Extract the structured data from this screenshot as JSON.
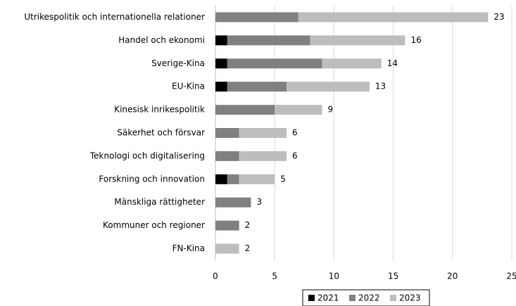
{
  "chart_data": {
    "type": "stacked_barh",
    "categories": [
      "Utrikespolitik och internationella relationer",
      "Handel och ekonomi",
      "Sverige-Kina",
      "EU-Kina",
      "Kinesisk inrikespolitik",
      "Säkerhet och försvar",
      "Teknologi och digitalisering",
      "Forskning och innovation",
      "Mänskliga rättigheter",
      "Kommuner och regioner",
      "FN-Kina"
    ],
    "series": [
      {
        "name": "2021",
        "color": "#000000",
        "values": [
          0,
          1,
          1,
          1,
          0,
          0,
          0,
          1,
          0,
          0,
          0
        ]
      },
      {
        "name": "2022",
        "color": "#808080",
        "values": [
          7,
          7,
          8,
          5,
          5,
          2,
          2,
          1,
          3,
          2,
          0
        ]
      },
      {
        "name": "2023",
        "color": "#bdbdbd",
        "values": [
          16,
          8,
          5,
          7,
          4,
          4,
          4,
          3,
          0,
          0,
          2
        ]
      }
    ],
    "totals": [
      23,
      16,
      14,
      13,
      9,
      6,
      6,
      5,
      3,
      2,
      2
    ],
    "xlim": [
      0,
      25
    ],
    "xticks": [
      0,
      5,
      10,
      15,
      20,
      25
    ],
    "grid": true,
    "legend": "bottom"
  }
}
